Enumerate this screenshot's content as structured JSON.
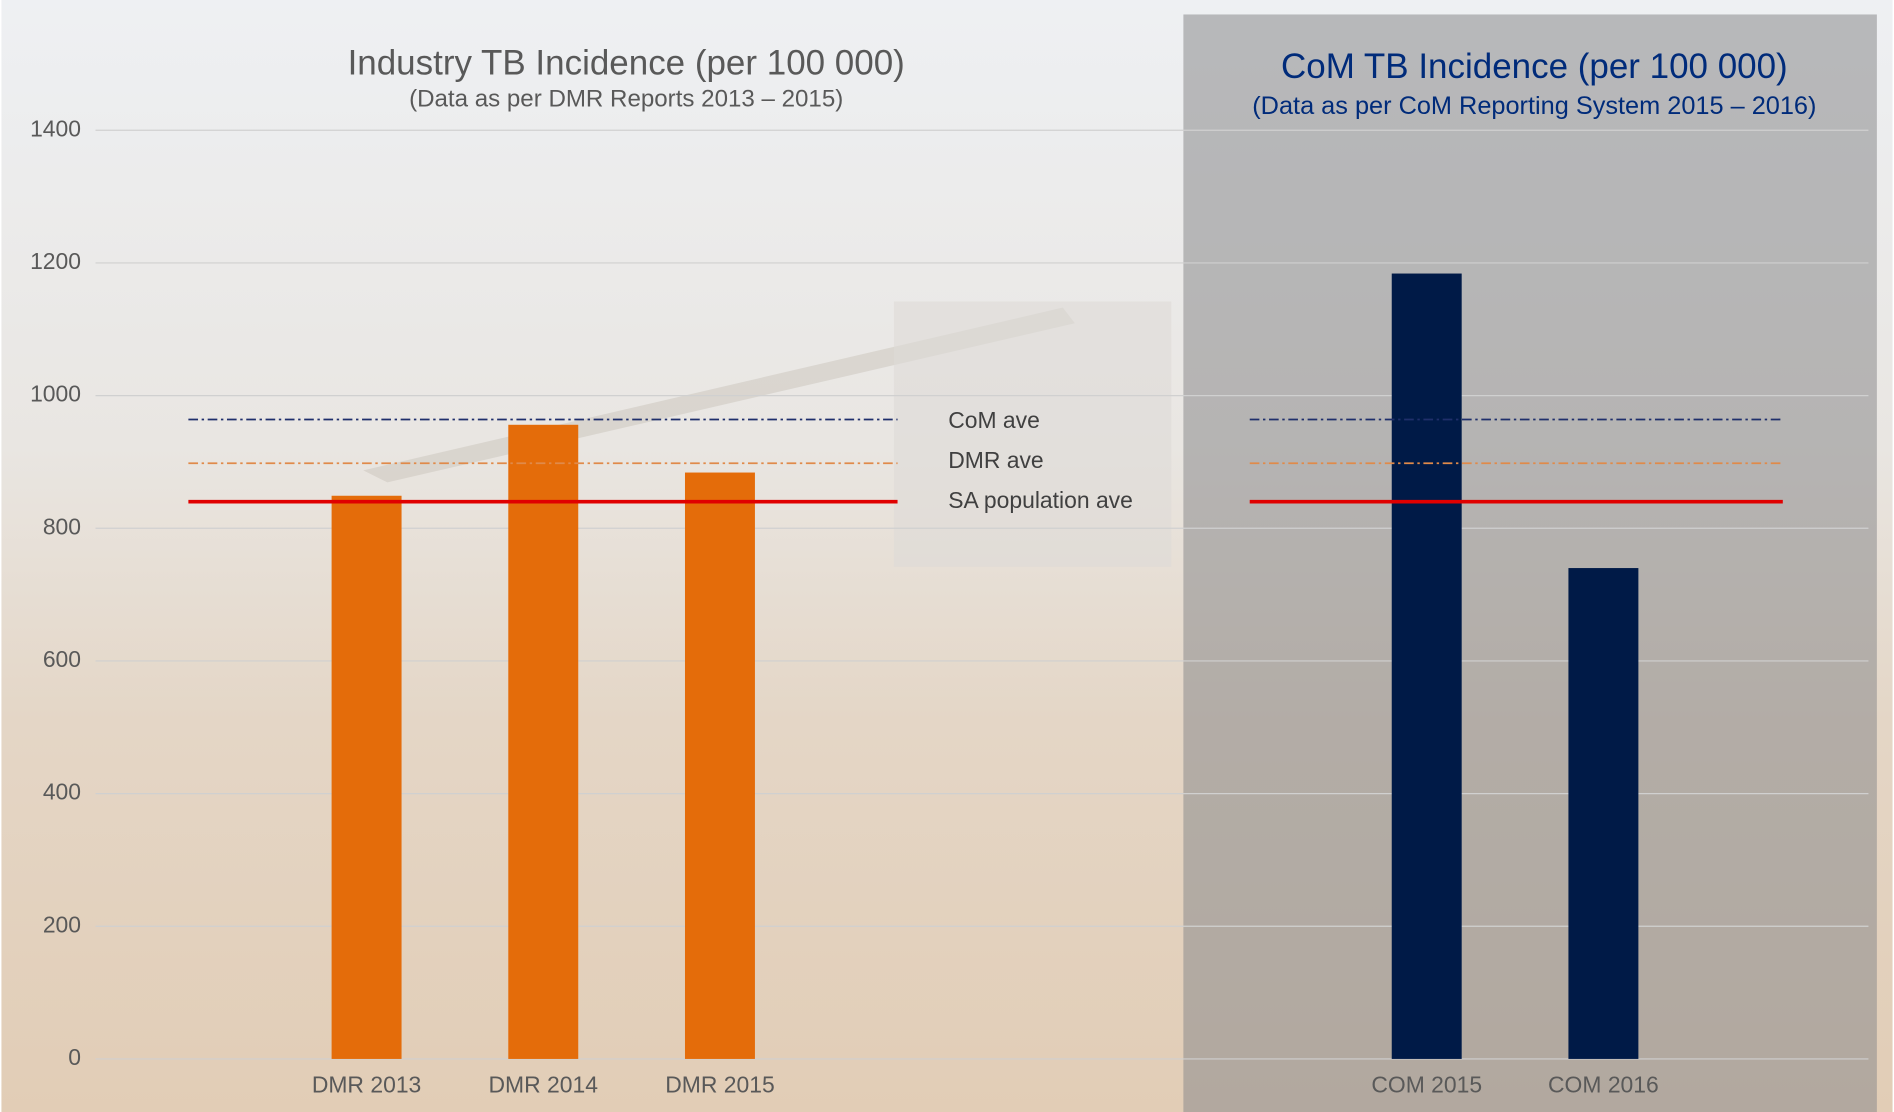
{
  "chart_data": {
    "type": "bar",
    "panels": [
      {
        "title": "Industry TB Incidence (per 100 000)",
        "subtitle": "(Data as per DMR Reports 2013 – 2015)"
      },
      {
        "title": "CoM TB Incidence (per 100 000)",
        "subtitle": "(Data as per CoM Reporting System 2015 – 2016)"
      }
    ],
    "categories": [
      null,
      "DMR 2013",
      "DMR 2014",
      "DMR 2015",
      null,
      null,
      null,
      "COM 2015",
      "COM 2016",
      null
    ],
    "values": [
      null,
      849,
      956,
      884,
      null,
      null,
      null,
      1184,
      740,
      null
    ],
    "colors": [
      null,
      "#e46c0a",
      "#e46c0a",
      "#e46c0a",
      null,
      null,
      null,
      "#001a47",
      "#001a47",
      null
    ],
    "reference_lines": [
      {
        "name": "CoM ave",
        "value": 964,
        "color": "#1f2f6b",
        "style": "dashdot"
      },
      {
        "name": "DMR ave",
        "value": 898,
        "color": "#e08a4a",
        "style": "dashdot"
      },
      {
        "name": "SA population ave",
        "value": 840,
        "color": "#e00000",
        "style": "solid"
      }
    ],
    "ylim": [
      0,
      1400
    ],
    "yticks": [
      0,
      200,
      400,
      600,
      800,
      1000,
      1200,
      1400
    ],
    "grid": true
  }
}
